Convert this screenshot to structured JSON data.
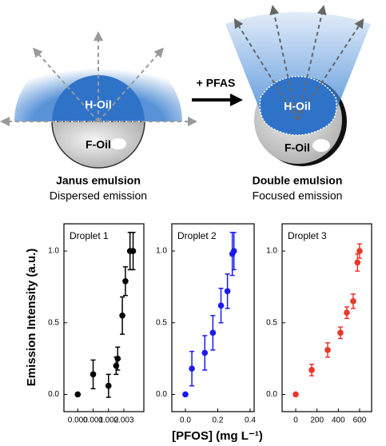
{
  "diagram": {
    "left": {
      "top_label": "H-Oil",
      "bottom_label": "F-Oil",
      "title": "Janus emulsion",
      "subtitle": "Dispersed emission"
    },
    "arrow_label": "+ PFAS",
    "right": {
      "top_label": "H-Oil",
      "bottom_label": "F-Oil",
      "title": "Double emulsion",
      "subtitle": "Focused emission"
    }
  },
  "axis_labels": {
    "y": "Emission Intensity (a.u.)",
    "x": "[PFOS] (mg L⁻¹)"
  },
  "chart_data": [
    {
      "type": "scatter",
      "title": "Droplet 1",
      "color": "#000000",
      "x": [
        0.0,
        0.001,
        0.002,
        0.0025,
        0.0026,
        0.0029,
        0.0031,
        0.0034,
        0.0036
      ],
      "values": [
        0.0,
        0.14,
        0.06,
        0.2,
        0.25,
        0.55,
        0.79,
        1.0,
        1.0
      ],
      "errors": [
        0.0,
        0.1,
        0.08,
        0.06,
        0.08,
        0.13,
        0.1,
        0.13,
        0.13
      ],
      "xlim": [
        -0.0009,
        0.0043
      ],
      "ylim": [
        -0.12,
        1.19
      ],
      "xticks": [
        {
          "value": 0,
          "label": "0.000"
        },
        {
          "value": 0.001,
          "label": "0.001"
        },
        {
          "value": 0.002,
          "label": "0.002"
        },
        {
          "value": 0.003,
          "label": "0.003"
        }
      ],
      "yticks": [
        {
          "value": 0,
          "label": "0.0"
        },
        0.5,
        {
          "value": 1,
          "label": "1.0"
        }
      ]
    },
    {
      "type": "scatter",
      "title": "Droplet 2",
      "color": "#1a1aee",
      "x": [
        0.0,
        0.04,
        0.12,
        0.17,
        0.22,
        0.26,
        0.29,
        0.3
      ],
      "values": [
        0.0,
        0.18,
        0.29,
        0.43,
        0.62,
        0.72,
        0.98,
        1.0
      ],
      "errors": [
        0.0,
        0.12,
        0.12,
        0.12,
        0.12,
        0.12,
        0.15,
        0.13
      ],
      "xlim": [
        -0.084,
        0.425
      ],
      "ylim": [
        -0.12,
        1.19
      ],
      "xticks": [
        {
          "value": 0,
          "label": "0.0"
        },
        0.2,
        0.4
      ],
      "yticks": [
        {
          "value": 0,
          "label": "0.0"
        },
        0.5,
        {
          "value": 1,
          "label": "1.0"
        }
      ]
    },
    {
      "type": "scatter",
      "title": "Droplet 3",
      "color": "#e8392b",
      "x": [
        0,
        150,
        300,
        420,
        480,
        540,
        580,
        600
      ],
      "values": [
        0.0,
        0.17,
        0.31,
        0.43,
        0.57,
        0.65,
        0.92,
        1.0
      ],
      "errors": [
        0.0,
        0.04,
        0.05,
        0.04,
        0.04,
        0.05,
        0.06,
        0.05
      ],
      "xlim": [
        -128,
        713
      ],
      "ylim": [
        -0.12,
        1.19
      ],
      "xticks": [
        0,
        200,
        400,
        600
      ],
      "yticks": [
        {
          "value": 0,
          "label": "0.0"
        },
        0.5,
        {
          "value": 1,
          "label": "1.0"
        }
      ]
    }
  ]
}
